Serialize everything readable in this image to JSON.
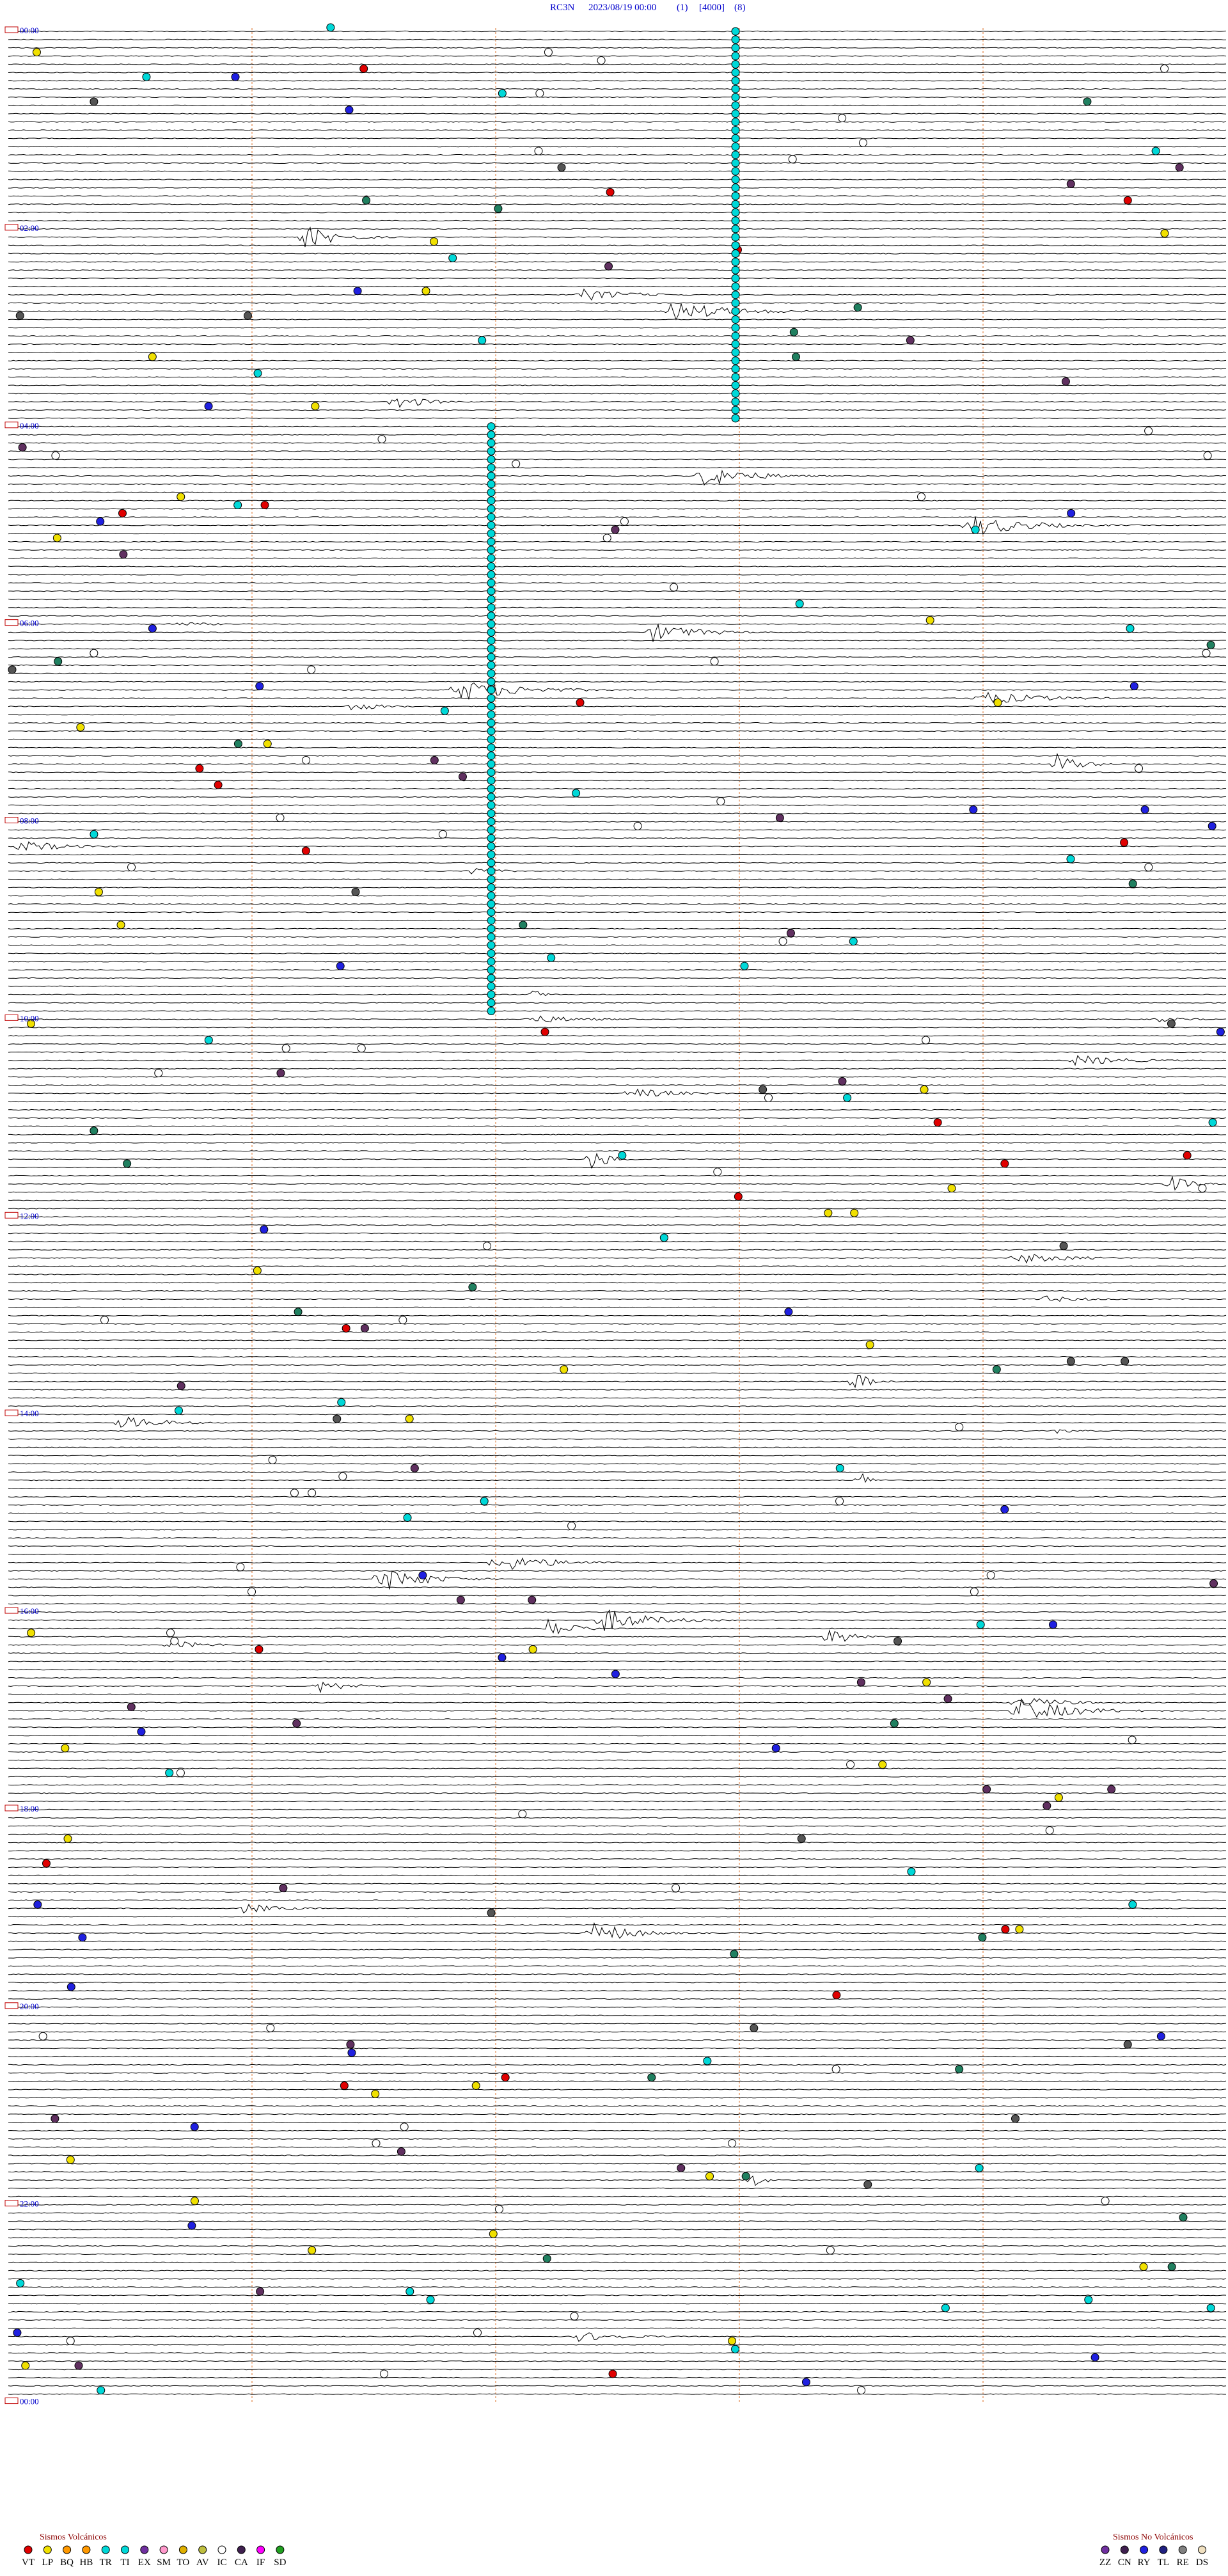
{
  "header": {
    "station": "RC3N",
    "datetime": "2023/08/19 00:00",
    "channel": "(1)",
    "gain": "[4000]",
    "scale": "(8)"
  },
  "time_labels": [
    "00:00",
    "02:00",
    "04:00",
    "06:00",
    "08:00",
    "10:00",
    "12:00",
    "14:00",
    "16:00",
    "18:00",
    "20:00",
    "22:00",
    "00:00"
  ],
  "legend": {
    "volcanic": {
      "title": "Sismos Volcánicos",
      "codes": [
        "VT",
        "LP",
        "BQ",
        "HB",
        "TR",
        "TI",
        "EX",
        "SM",
        "TO",
        "AV",
        "IC",
        "CA",
        "IF",
        "SD"
      ]
    },
    "non_volcanic": {
      "title": "Sismos No Volcánicos",
      "codes": [
        "ZZ",
        "CN",
        "RY",
        "TL",
        "RE",
        "DS"
      ]
    }
  }
}
